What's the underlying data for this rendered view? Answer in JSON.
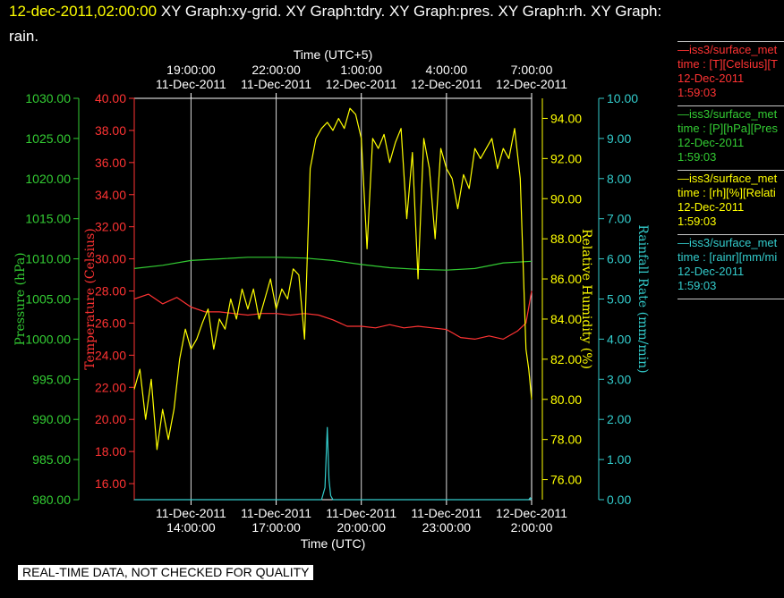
{
  "header": {
    "date": "12-dec-2011,02:00:00",
    "titles_line1": " XY Graph:xy-grid.  XY Graph:tdry.  XY Graph:pres.  XY Graph:rh.  XY Graph:",
    "titles_line2": "rain."
  },
  "legend": [
    {
      "color": "#ff3333",
      "line1": "—iss3/surface_met",
      "line2": "time : [T][Celsius][T",
      "line3": "12-Dec-2011",
      "line4": "1:59:03"
    },
    {
      "color": "#33cc33",
      "line1": "—iss3/surface_met",
      "line2": "time : [P][hPa][Pres",
      "line3": "12-Dec-2011",
      "line4": "1:59:03"
    },
    {
      "color": "#ffff00",
      "line1": "—iss3/surface_met",
      "line2": "time : [rh][%][Relati",
      "line3": "12-Dec-2011",
      "line4": "1:59:03"
    },
    {
      "color": "#33cccc",
      "line1": "—iss3/surface_met",
      "line2": "time : [rainr][mm/mi",
      "line3": "12-Dec-2011",
      "line4": "1:59:03"
    }
  ],
  "footer": {
    "banner": "REAL-TIME DATA, NOT CHECKED FOR QUALITY"
  },
  "chart_data": {
    "type": "line",
    "grid": true,
    "x_top_title": "Time (UTC+5)",
    "x_bottom_title": "Time (UTC)",
    "x_range": [
      "11-Dec-2011 12:00:00 UTC",
      "12-Dec-2011 02:00:00 UTC"
    ],
    "x_bottom_ticks": [
      {
        "date": "11-Dec-2011",
        "time": "14:00:00"
      },
      {
        "date": "11-Dec-2011",
        "time": "17:00:00"
      },
      {
        "date": "11-Dec-2011",
        "time": "20:00:00"
      },
      {
        "date": "11-Dec-2011",
        "time": "23:00:00"
      },
      {
        "date": "12-Dec-2011",
        "time": "2:00:00"
      }
    ],
    "x_top_ticks": [
      {
        "time": "19:00:00",
        "date": "11-Dec-2011"
      },
      {
        "time": "22:00:00",
        "date": "11-Dec-2011"
      },
      {
        "time": "1:00:00",
        "date": "12-Dec-2011"
      },
      {
        "time": "4:00:00",
        "date": "12-Dec-2011"
      },
      {
        "time": "7:00:00",
        "date": "12-Dec-2011"
      }
    ],
    "axes": {
      "pressure": {
        "label": "Pressure (hPa)",
        "color": "#33cc33",
        "range": [
          980,
          1030
        ],
        "step": 5,
        "decimals": 2
      },
      "temperature": {
        "label": "Temperature (Celsius)",
        "color": "#ff3333",
        "range": [
          15,
          40
        ],
        "step": 2,
        "decimals": 2
      },
      "humidity": {
        "label": "Relative Humidity (%)",
        "color": "#ffff00",
        "range": [
          75,
          95
        ],
        "step": 2,
        "decimals": 2
      },
      "rain": {
        "label": "Rainfall Rate (mm/min)",
        "color": "#33cccc",
        "range": [
          0,
          10
        ],
        "step": 1,
        "decimals": 2
      }
    },
    "series": [
      {
        "axis": "pressure",
        "color": "#33cc33",
        "x_hours": [
          12.0,
          13.0,
          14.0,
          15.0,
          16.0,
          17.0,
          18.0,
          19.0,
          20.0,
          21.0,
          22.0,
          23.0,
          24.0,
          25.0,
          26.0
        ],
        "y": [
          1008.8,
          1009.2,
          1009.8,
          1010.0,
          1010.2,
          1010.2,
          1010.1,
          1009.8,
          1009.3,
          1008.9,
          1008.7,
          1008.6,
          1008.8,
          1009.5,
          1009.7
        ]
      },
      {
        "axis": "temperature",
        "color": "#ff3333",
        "x_hours": [
          12.0,
          12.5,
          13.0,
          13.5,
          14.0,
          14.5,
          15.0,
          15.5,
          16.0,
          16.5,
          17.0,
          17.5,
          18.0,
          18.5,
          19.0,
          19.5,
          20.0,
          20.5,
          21.0,
          21.5,
          22.0,
          22.5,
          23.0,
          23.5,
          24.0,
          24.5,
          25.0,
          25.5,
          25.8,
          26.0
        ],
        "y": [
          27.5,
          27.8,
          27.2,
          27.6,
          27.0,
          26.7,
          26.7,
          26.6,
          26.5,
          26.6,
          26.6,
          26.5,
          26.6,
          26.5,
          26.2,
          25.8,
          25.8,
          25.7,
          25.9,
          25.7,
          25.8,
          25.7,
          25.6,
          25.1,
          25.0,
          25.2,
          25.0,
          25.5,
          26.0,
          28.0
        ]
      },
      {
        "axis": "humidity",
        "color": "#ffff00",
        "x_hours": [
          12.0,
          12.2,
          12.4,
          12.6,
          12.8,
          13.0,
          13.2,
          13.4,
          13.6,
          13.8,
          14.0,
          14.2,
          14.4,
          14.6,
          14.8,
          15.0,
          15.2,
          15.4,
          15.6,
          15.8,
          16.0,
          16.2,
          16.4,
          16.6,
          16.8,
          17.0,
          17.2,
          17.4,
          17.6,
          17.8,
          18.0,
          18.2,
          18.4,
          18.6,
          18.8,
          19.0,
          19.2,
          19.4,
          19.6,
          19.8,
          20.0,
          20.2,
          20.4,
          20.6,
          20.8,
          21.0,
          21.2,
          21.4,
          21.6,
          21.8,
          22.0,
          22.2,
          22.4,
          22.6,
          22.8,
          23.0,
          23.2,
          23.4,
          23.6,
          23.8,
          24.0,
          24.2,
          24.4,
          24.6,
          24.8,
          25.0,
          25.2,
          25.4,
          25.6,
          25.8,
          25.9,
          26.0
        ],
        "y": [
          80.5,
          81.5,
          79.0,
          81.0,
          77.5,
          79.5,
          78.0,
          79.5,
          82.0,
          83.5,
          82.5,
          83.0,
          83.8,
          84.5,
          82.5,
          84.0,
          83.5,
          85.0,
          84.0,
          85.5,
          84.5,
          85.5,
          84.0,
          85.0,
          86.0,
          84.5,
          85.5,
          85.0,
          86.5,
          86.2,
          83.0,
          91.5,
          93.0,
          93.5,
          93.8,
          93.4,
          94.0,
          93.5,
          94.5,
          94.2,
          93.0,
          87.5,
          93.0,
          92.5,
          93.2,
          91.8,
          92.8,
          93.5,
          89.0,
          92.3,
          86.0,
          93.0,
          91.5,
          88.0,
          92.5,
          91.5,
          91.0,
          89.5,
          91.2,
          90.5,
          92.5,
          92.0,
          92.5,
          93.0,
          91.5,
          92.5,
          92.0,
          93.5,
          91.0,
          82.5,
          81.5,
          80.0
        ]
      },
      {
        "axis": "rain",
        "color": "#33cccc",
        "x_hours": [
          12.0,
          14.0,
          16.0,
          18.0,
          18.6,
          18.72,
          18.8,
          18.86,
          18.92,
          19.0,
          20.0,
          22.0,
          24.0,
          25.9,
          25.95,
          26.0
        ],
        "y": [
          0.0,
          0.0,
          0.0,
          0.0,
          0.0,
          0.3,
          1.8,
          0.5,
          0.1,
          0.0,
          0.0,
          0.0,
          0.0,
          0.0,
          0.05,
          0.0
        ]
      }
    ]
  }
}
